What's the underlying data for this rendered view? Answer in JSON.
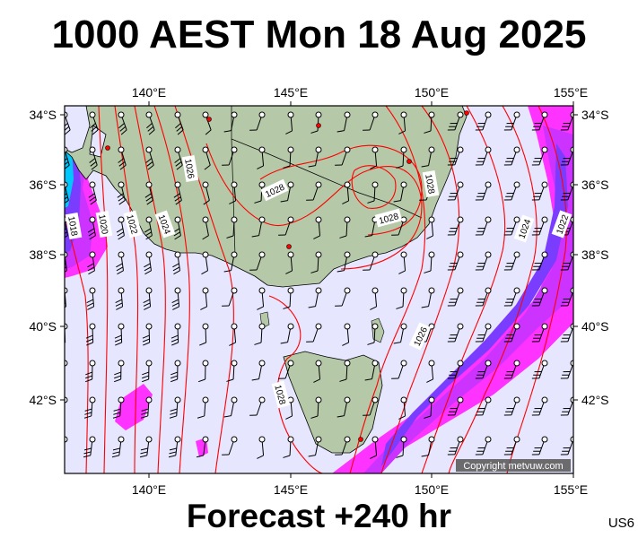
{
  "title": "1000 AEST Mon 18 Aug 2025",
  "subtitle": "Forecast +240 hr",
  "model_code": "US6",
  "copyright": "Copyright metvuw.com",
  "map": {
    "lon_ticks": [
      "140°E",
      "145°E",
      "150°E",
      "155°E"
    ],
    "lat_ticks": [
      "34°S",
      "36°S",
      "38°S",
      "40°S",
      "42°S"
    ],
    "isobar_labels": [
      "1018",
      "1020",
      "1022",
      "1024",
      "1026",
      "1028",
      "1028",
      "1028",
      "1028",
      "1026",
      "1024",
      "1022",
      "1026",
      "1028"
    ],
    "colors": {
      "ocean": "#e6e6ff",
      "land": "#b5c9a8",
      "isobar": "#ff0000",
      "precip_light": "#ff33ff",
      "precip_mid": "#cc33ff",
      "precip_heavy": "#7a3cff",
      "frame": "#000000"
    }
  }
}
